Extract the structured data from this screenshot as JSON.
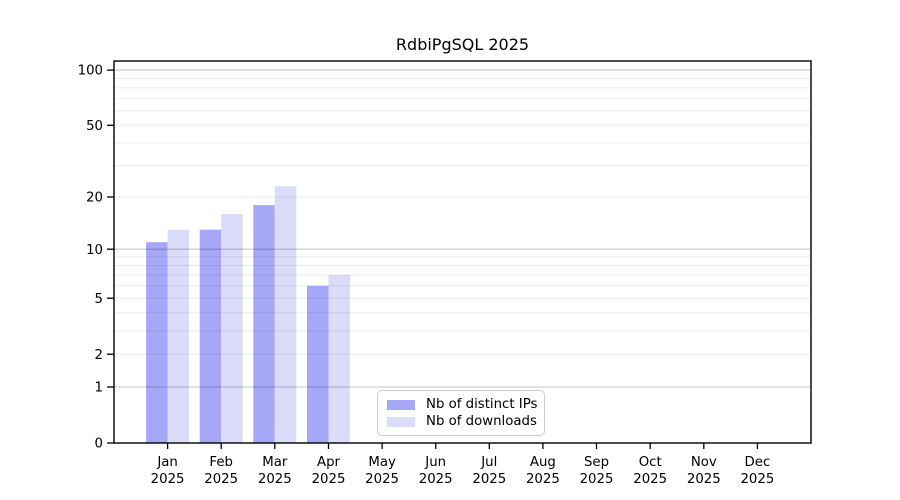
{
  "chart_data": {
    "type": "bar",
    "title": "RdbiPgSQL 2025",
    "categories": [
      "Jan",
      "Feb",
      "Mar",
      "Apr",
      "May",
      "Jun",
      "Jul",
      "Aug",
      "Sep",
      "Oct",
      "Nov",
      "Dec"
    ],
    "category_year": "2025",
    "series": [
      {
        "name": "Nb of distinct IPs",
        "color": "#a7a7f8",
        "values": [
          11,
          13,
          18,
          6,
          null,
          null,
          null,
          null,
          null,
          null,
          null,
          null
        ]
      },
      {
        "name": "Nb of downloads",
        "color": "#dbdbfa",
        "values": [
          13,
          16,
          23,
          7,
          null,
          null,
          null,
          null,
          null,
          null,
          null,
          null
        ]
      }
    ],
    "xlabel": "",
    "ylabel": "",
    "yscale": "log1p",
    "ylim": [
      0,
      112
    ],
    "yticks": [
      0,
      1,
      2,
      5,
      10,
      20,
      50,
      100
    ],
    "grid": {
      "major_lines": [
        1,
        10,
        100
      ],
      "minor_lines": [
        2,
        3,
        4,
        5,
        6,
        7,
        8,
        9,
        20,
        30,
        40,
        50,
        60,
        70,
        80,
        90
      ]
    },
    "legend_position": "lower center-right inside plot",
    "colors": {
      "axis": "#000000",
      "grid_major": "rgba(0,0,0,0.22)",
      "grid_minor": "rgba(0,0,0,0.08)",
      "tick_label": "#000000",
      "background": "#ffffff"
    }
  }
}
